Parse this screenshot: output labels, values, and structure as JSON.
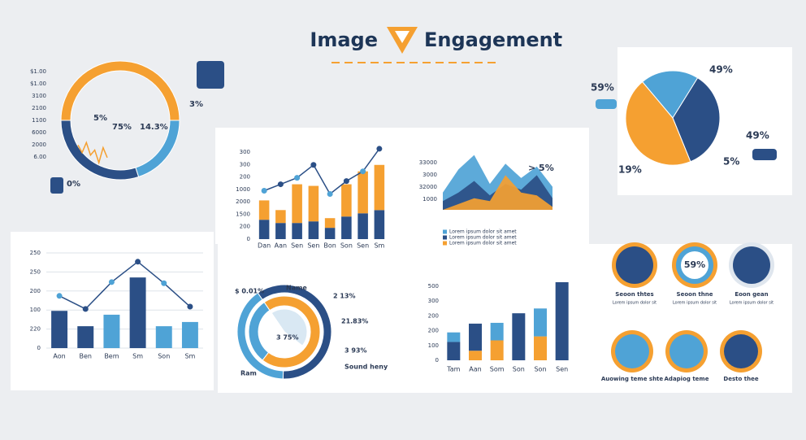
{
  "header": {
    "title_a": "Image",
    "title_b": "Engagement"
  },
  "chart_data": [
    {
      "type": "donut",
      "values": [
        50,
        20,
        30
      ],
      "colors": [
        "#f5a031",
        "#4fa3d6",
        "#2b4f86"
      ],
      "axis_labels": [
        "$1.00",
        "$1.00",
        "3100",
        "2100",
        "1100",
        "6000",
        "2000",
        "6.00"
      ],
      "annotations": [
        "5%",
        "75%",
        "14.3%",
        "3%",
        "0%"
      ],
      "inner_line": {
        "color": "#f5a031",
        "values": [
          20,
          35,
          15,
          40,
          30,
          55,
          25,
          45
        ]
      }
    },
    {
      "type": "pie",
      "values": [
        20,
        35,
        45
      ],
      "colors": [
        "#4fa3d6",
        "#2b4f86",
        "#f5a031"
      ],
      "annotations": [
        "49%",
        "59%",
        "49%",
        "19%",
        "5%"
      ]
    },
    {
      "type": "bar_line",
      "ylim": [
        0,
        300
      ],
      "axis_labels": [
        "300",
        "300",
        "200",
        "1000",
        "2000",
        "1500",
        "200",
        "0"
      ],
      "categories": [
        "Dan",
        "Aan",
        "Sen",
        "Sen",
        "Bon",
        "Son",
        "Sen",
        "Sm"
      ],
      "series": [
        {
          "color": "#2b4f86",
          "values": [
            60,
            50,
            50,
            55,
            35,
            70,
            80,
            90
          ]
        },
        {
          "color": "#f5a031",
          "values": [
            60,
            40,
            120,
            110,
            30,
            100,
            130,
            140
          ]
        }
      ],
      "line": {
        "color": "#2b4f86",
        "values": [
          150,
          170,
          190,
          230,
          140,
          180,
          210,
          280
        ]
      }
    },
    {
      "type": "area",
      "ylim": [
        0,
        100
      ],
      "axis_labels": [
        "33000",
        "3000",
        "32000",
        "1000"
      ],
      "annotations": [
        "> 5%"
      ],
      "legend": [
        "Lorem ipsum dolor sit amet",
        "Lorem ipsum dolor sit amet",
        "Lorem ipsum dolor sit amet"
      ],
      "series": [
        {
          "color": "#4fa3d6",
          "values": [
            30,
            70,
            95,
            45,
            80,
            55,
            75,
            40
          ]
        },
        {
          "color": "#2b4f86",
          "values": [
            15,
            30,
            50,
            25,
            45,
            35,
            60,
            20
          ]
        },
        {
          "color": "#f5a031",
          "values": [
            0,
            10,
            20,
            15,
            60,
            30,
            25,
            5
          ]
        }
      ]
    },
    {
      "type": "bar_line",
      "ylim": [
        0,
        250
      ],
      "axis_labels": [
        "250",
        "250",
        "200",
        "100",
        "220",
        "0"
      ],
      "categories": [
        "Aon",
        "Ben",
        "Bem",
        "Sm",
        "Son",
        "Sm"
      ],
      "series": [
        {
          "colors": [
            "#2b4f86",
            "#2b4f86",
            "#4fa3d6",
            "#2b4f86",
            "#4fa3d6",
            "#4fa3d6"
          ],
          "values": [
            97,
            57,
            87,
            184,
            57,
            68
          ]
        }
      ],
      "line": {
        "color": "#2b4f86",
        "values": [
          136,
          102,
          172,
          225,
          169,
          108
        ]
      }
    },
    {
      "type": "rings",
      "rings": [
        {
          "values": [
            60,
            40
          ],
          "colors": [
            "#2b4f86",
            "#4fa3d6"
          ]
        },
        {
          "values": [
            70,
            30
          ],
          "colors": [
            "#f5a031",
            "#4fa3d6"
          ]
        },
        {
          "values": [
            45,
            55
          ],
          "colors": [
            "#d9e8f3",
            "#ffffff"
          ]
        }
      ],
      "annotations": [
        "$ 0.01%",
        "Name",
        "2 13%",
        "21.83%",
        "3 93%",
        "Sound heny",
        "Ram",
        "3 75%"
      ]
    },
    {
      "type": "stacked_bar",
      "ylim": [
        0,
        100
      ],
      "axis_labels": [
        "500",
        "300",
        "200",
        "200",
        "100",
        "0"
      ],
      "categories": [
        "Tam",
        "Aan",
        "Som",
        "Son",
        "Son",
        "Sen"
      ],
      "series": [
        {
          "color": "#f5a031",
          "values": [
            0,
            12,
            25,
            0,
            30,
            0
          ]
        },
        {
          "color": "#2b4f86",
          "values": [
            23,
            34,
            0,
            59,
            0,
            98
          ]
        },
        {
          "color": "#4fa3d6",
          "values": [
            12,
            0,
            22,
            0,
            35,
            0
          ]
        }
      ]
    }
  ],
  "icon_grid": {
    "center_value": "59%",
    "items": [
      {
        "label": "Seoon thtes",
        "text": "Lorem ipsum dolor sit"
      },
      {
        "label": "Seoon thne",
        "text": "Lorem ipsum dolor sit"
      },
      {
        "label": "Eoon gean",
        "text": "Lorem ipsum dolor sit"
      },
      {
        "label": "Auowing teme shte"
      },
      {
        "label": "Adapiog teme"
      },
      {
        "label": "Desto thee"
      }
    ]
  }
}
